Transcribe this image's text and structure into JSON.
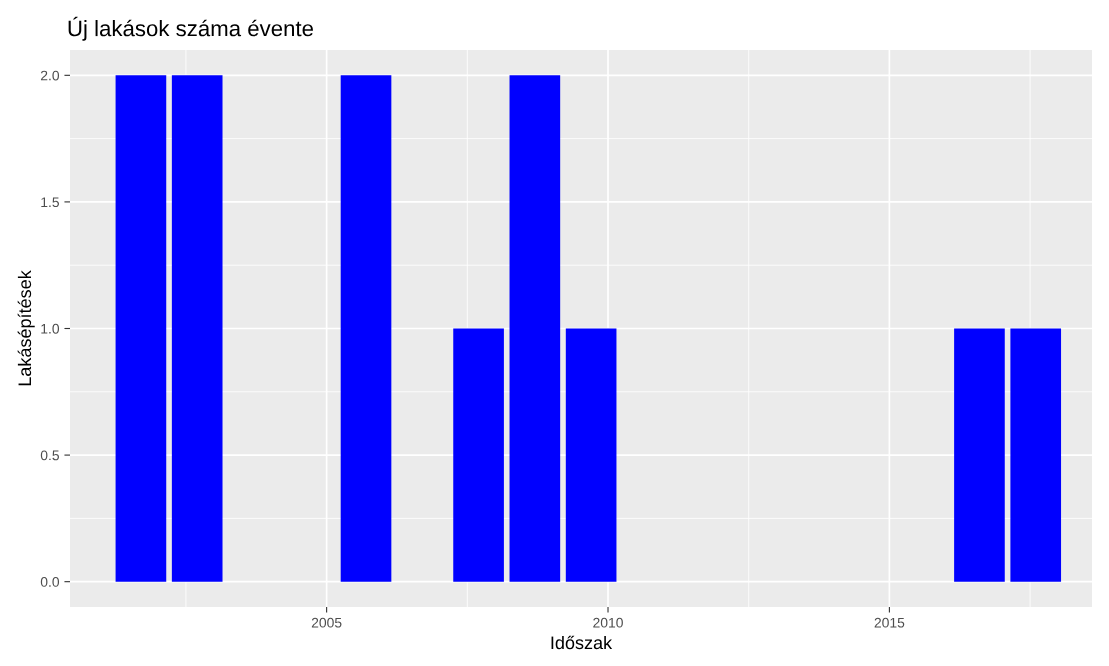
{
  "chart_data": {
    "type": "bar",
    "title": "Új lakások száma évente",
    "xlabel": "Időszak",
    "ylabel": "Lakásépítések",
    "x": [
      2001.7,
      2002.7,
      2005.7,
      2007.7,
      2008.7,
      2009.7,
      2016.6,
      2017.6
    ],
    "values": [
      2,
      2,
      2,
      1,
      2,
      1,
      1,
      1
    ],
    "color": "#0000ff",
    "xlim": [
      2000.44,
      2018.6
    ],
    "xticks": [
      2005,
      2010,
      2015
    ],
    "ylim": [
      -0.1,
      2.1
    ],
    "yticks": [
      {
        "value": 0,
        "label": "0.0"
      },
      {
        "value": 0.5,
        "label": "0.5"
      },
      {
        "value": 1,
        "label": "1.0"
      },
      {
        "value": 1.5,
        "label": "1.5"
      },
      {
        "value": 2,
        "label": "2.0"
      }
    ],
    "grid": true
  }
}
